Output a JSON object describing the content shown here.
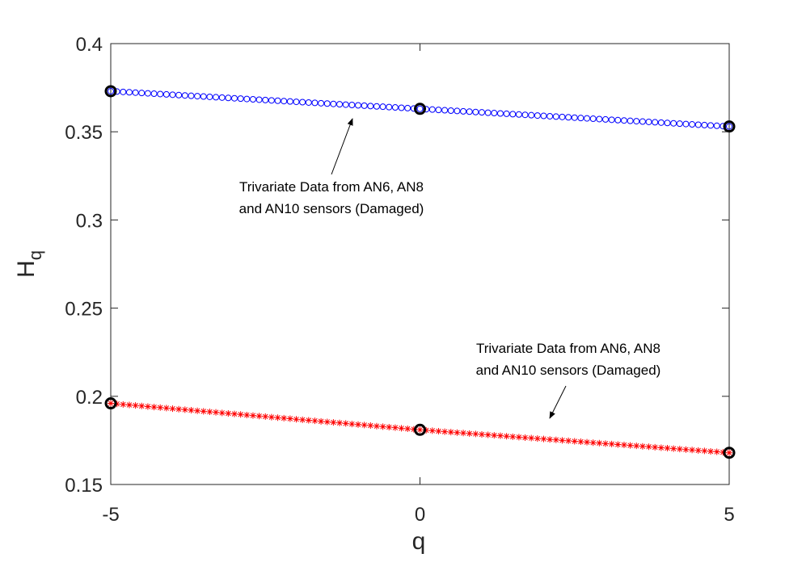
{
  "chart_data": {
    "type": "scatter",
    "xlabel": "q",
    "ylabel": {
      "base": "H",
      "sub": "q"
    },
    "xlim": [
      -5,
      5
    ],
    "ylim": [
      0.15,
      0.4
    ],
    "xticks": [
      -5,
      0,
      5
    ],
    "yticks": [
      0.15,
      0.2,
      0.25,
      0.3,
      0.35,
      0.4
    ],
    "grid": false,
    "x": [
      -5,
      -4.9,
      -4.8,
      -4.7,
      -4.6,
      -4.5,
      -4.4,
      -4.3,
      -4.2,
      -4.1,
      -4,
      -3.9,
      -3.8,
      -3.7,
      -3.6,
      -3.5,
      -3.4,
      -3.3,
      -3.2,
      -3.1,
      -3,
      -2.9,
      -2.8,
      -2.7,
      -2.6,
      -2.5,
      -2.4,
      -2.3,
      -2.2,
      -2.1,
      -2,
      -1.9,
      -1.8,
      -1.7,
      -1.6,
      -1.5,
      -1.4,
      -1.3,
      -1.2,
      -1.1,
      -1,
      -0.9,
      -0.8,
      -0.7,
      -0.6,
      -0.5,
      -0.4,
      -0.3,
      -0.2,
      -0.1,
      0,
      0.1,
      0.2,
      0.3,
      0.4,
      0.5,
      0.6,
      0.7,
      0.8,
      0.9,
      1,
      1.1,
      1.2,
      1.3,
      1.4,
      1.5,
      1.6,
      1.7,
      1.8,
      1.9,
      2,
      2.1,
      2.2,
      2.3,
      2.4,
      2.5,
      2.6,
      2.7,
      2.8,
      2.9,
      3,
      3.1,
      3.2,
      3.3,
      3.4,
      3.5,
      3.6,
      3.7,
      3.8,
      3.9,
      4,
      4.1,
      4.2,
      4.3,
      4.4,
      4.5,
      4.6,
      4.7,
      4.8,
      4.9,
      5
    ],
    "series": [
      {
        "color": "#0000ff",
        "marker": "circle",
        "values": [
          0.373,
          0.3728,
          0.3726,
          0.3724,
          0.3722,
          0.372,
          0.3718,
          0.3716,
          0.3714,
          0.3712,
          0.371,
          0.3708,
          0.3706,
          0.3704,
          0.3702,
          0.37,
          0.3698,
          0.3696,
          0.3694,
          0.3692,
          0.369,
          0.3688,
          0.3686,
          0.3684,
          0.3682,
          0.368,
          0.3678,
          0.3676,
          0.3674,
          0.3672,
          0.367,
          0.3668,
          0.3666,
          0.3664,
          0.3662,
          0.366,
          0.3658,
          0.3656,
          0.3654,
          0.3652,
          0.365,
          0.3648,
          0.3646,
          0.3644,
          0.3642,
          0.364,
          0.3638,
          0.3636,
          0.3634,
          0.3632,
          0.363,
          0.3628,
          0.3626,
          0.3624,
          0.3622,
          0.362,
          0.3618,
          0.3616,
          0.3614,
          0.3612,
          0.361,
          0.3608,
          0.3606,
          0.3604,
          0.3602,
          0.36,
          0.3598,
          0.3596,
          0.3594,
          0.3592,
          0.359,
          0.3588,
          0.3586,
          0.3584,
          0.3582,
          0.358,
          0.3578,
          0.3576,
          0.3574,
          0.3572,
          0.357,
          0.3568,
          0.3566,
          0.3564,
          0.3562,
          0.356,
          0.3558,
          0.3556,
          0.3554,
          0.3552,
          0.355,
          0.3548,
          0.3546,
          0.3544,
          0.3542,
          0.354,
          0.3538,
          0.3536,
          0.3534,
          0.3532,
          0.353
        ]
      },
      {
        "color": "#ff0000",
        "marker": "asterisk",
        "values": [
          0.196,
          0.1957,
          0.1954,
          0.1951,
          0.1948,
          0.1945,
          0.1942,
          0.1939,
          0.1936,
          0.1933,
          0.193,
          0.1927,
          0.1924,
          0.1921,
          0.1918,
          0.1915,
          0.1912,
          0.1909,
          0.1906,
          0.1903,
          0.19,
          0.1897,
          0.1894,
          0.1891,
          0.1888,
          0.1885,
          0.1882,
          0.1879,
          0.1876,
          0.1873,
          0.187,
          0.1867,
          0.1864,
          0.1861,
          0.1858,
          0.1855,
          0.1852,
          0.1849,
          0.1846,
          0.1843,
          0.184,
          0.1837,
          0.1834,
          0.1831,
          0.1828,
          0.1825,
          0.1822,
          0.1819,
          0.1816,
          0.1813,
          0.181,
          0.18074,
          0.18048,
          0.18022,
          0.17996,
          0.1797,
          0.17944,
          0.17918,
          0.17892,
          0.17866,
          0.1784,
          0.17814,
          0.17788,
          0.17762,
          0.17736,
          0.1771,
          0.17684,
          0.17658,
          0.17632,
          0.17606,
          0.1758,
          0.17554,
          0.17528,
          0.17502,
          0.17476,
          0.1745,
          0.17424,
          0.17398,
          0.17372,
          0.17346,
          0.1732,
          0.17294,
          0.17268,
          0.17242,
          0.17216,
          0.1719,
          0.17164,
          0.17138,
          0.17112,
          0.17086,
          0.1706,
          0.17034,
          0.17008,
          0.16982,
          0.16956,
          0.1693,
          0.16904,
          0.16878,
          0.16852,
          0.16826,
          0.168
        ]
      }
    ],
    "key_points": {
      "color": "#000000",
      "x": [
        -5,
        0,
        5,
        -5,
        0,
        5
      ],
      "values": [
        0.373,
        0.363,
        0.353,
        0.196,
        0.181,
        0.168
      ]
    },
    "annotations": [
      {
        "lines": [
          "Trivariate Data from AN6, AN8",
          "and AN10 sensors (Damaged)"
        ]
      },
      {
        "lines": [
          "Trivariate Data from AN6, AN8",
          "and AN10 sensors (Damaged)"
        ]
      }
    ]
  }
}
